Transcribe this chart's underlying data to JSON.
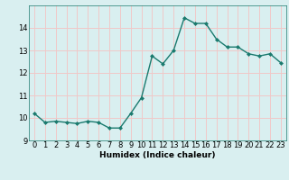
{
  "x": [
    0,
    1,
    2,
    3,
    4,
    5,
    6,
    7,
    8,
    9,
    10,
    11,
    12,
    13,
    14,
    15,
    16,
    17,
    18,
    19,
    20,
    21,
    22,
    23
  ],
  "y": [
    10.2,
    9.8,
    9.85,
    9.8,
    9.75,
    9.85,
    9.8,
    9.55,
    9.55,
    10.2,
    10.9,
    12.75,
    12.4,
    13.0,
    14.45,
    14.2,
    14.2,
    13.5,
    13.15,
    13.15,
    12.85,
    12.75,
    12.85,
    12.45
  ],
  "line_color": "#1a7a6e",
  "marker": "D",
  "marker_size": 2.0,
  "bg_color": "#d9eff0",
  "grid_color": "#f0c8c8",
  "xlabel": "Humidex (Indice chaleur)",
  "ylim": [
    9,
    15
  ],
  "xlim": [
    -0.5,
    23.5
  ],
  "yticks": [
    9,
    10,
    11,
    12,
    13,
    14
  ],
  "xticks": [
    0,
    1,
    2,
    3,
    4,
    5,
    6,
    7,
    8,
    9,
    10,
    11,
    12,
    13,
    14,
    15,
    16,
    17,
    18,
    19,
    20,
    21,
    22,
    23
  ],
  "xlabel_fontsize": 6.5,
  "tick_fontsize": 6.0,
  "line_width": 1.0
}
